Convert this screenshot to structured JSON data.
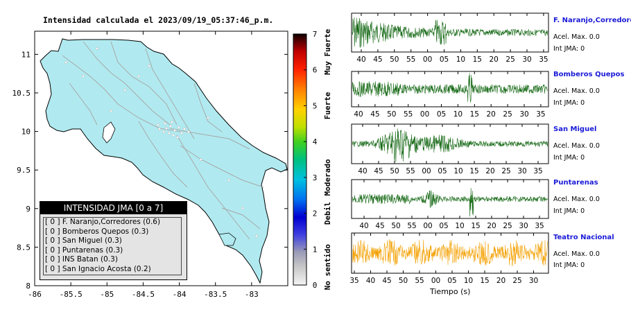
{
  "header": {
    "title": "Intensidad calculada el 2023/09/19_05:37:46_p.m."
  },
  "chart_data": [
    {
      "type": "map",
      "title": "Intensidad calculada el 2023/09/19_05:37:46_p.m.",
      "x_ticks": [
        "-86",
        "-85.5",
        "-85",
        "-84.5",
        "-84",
        "-83.5",
        "-83"
      ],
      "y_ticks": [
        "11",
        "10.5",
        "10",
        "9.5",
        "9",
        "8.5",
        "8"
      ],
      "xlim": [
        -86,
        -82.5
      ],
      "ylim": [
        8,
        11.3
      ],
      "land_color": "#b0eaf0"
    },
    {
      "type": "colorbar",
      "ticks": [
        "0",
        "1",
        "2",
        "3",
        "4",
        "5",
        "6",
        "7"
      ],
      "range": [
        0,
        7
      ],
      "category_labels": [
        "No sentido",
        "Debil",
        "Moderado",
        "Fuerte",
        "Muy Fuerte"
      ]
    },
    {
      "type": "line",
      "xlabel": "Tiempo (s)",
      "series": [
        {
          "name": "F. Naranjo,Corredores",
          "acc": "Acel. Max. 0.0",
          "jma": "Int JMA: 0",
          "color": "#116611",
          "x_ticks": [
            "40",
            "45",
            "50",
            "55",
            "00",
            "05",
            "10",
            "15",
            "20",
            "25",
            "30",
            "35"
          ]
        },
        {
          "name": "Bomberos Quepos",
          "acc": "Acel. Max. 0.0",
          "jma": "Int JMA: 0",
          "color": "#116611",
          "x_ticks": [
            "40",
            "45",
            "50",
            "55",
            "00",
            "05",
            "10",
            "15",
            "20",
            "25",
            "30",
            "35"
          ]
        },
        {
          "name": "San Miguel",
          "acc": "Acel. Max. 0.0",
          "jma": "Int JMA: 0",
          "color": "#116611",
          "x_ticks": [
            "40",
            "45",
            "50",
            "55",
            "00",
            "05",
            "10",
            "15",
            "20",
            "25",
            "30",
            "35"
          ]
        },
        {
          "name": "Puntarenas",
          "acc": "Acel. Max. 0.0",
          "jma": "Int JMA: 0",
          "color": "#116611",
          "x_ticks": [
            "40",
            "45",
            "50",
            "55",
            "00",
            "05",
            "10",
            "15",
            "20",
            "25",
            "30",
            "35"
          ]
        },
        {
          "name": "Teatro Nacional",
          "acc": "Acel. Max. 0.0",
          "jma": "Int JMA: 0",
          "color": "#f4a000",
          "x_ticks": [
            "35",
            "40",
            "45",
            "50",
            "55",
            "00",
            "05",
            "10",
            "15",
            "20",
            "25",
            "30"
          ]
        }
      ]
    }
  ],
  "legend": {
    "title": "INTENSIDAD JMA [0 a 7]",
    "items": [
      {
        "text": "[ 0 ]  F. Naranjo,Corredores (0.6)"
      },
      {
        "text": "[ 0 ]  Bomberos Quepos (0.3)"
      },
      {
        "text": "[ 0 ]  San Miguel (0.3)"
      },
      {
        "text": "[ 0 ]  Puntarenas (0.3)"
      },
      {
        "text": "[ 0 ]  INS Batan (0.3)"
      },
      {
        "text": "[ 0 ]  San Ignacio Acosta (0.2)"
      }
    ]
  }
}
